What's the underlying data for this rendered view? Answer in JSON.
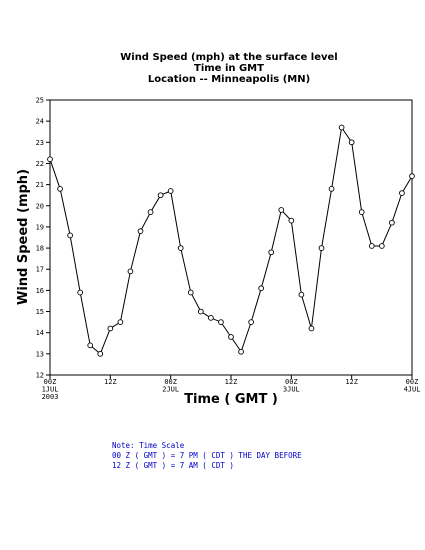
{
  "chart_data": {
    "type": "line",
    "title_lines": [
      "Wind Speed (mph) at the surface level",
      "Time in GMT",
      "Location -- Minneapolis (MN)"
    ],
    "xlabel": "Time ( GMT )",
    "ylabel": "Wind Speed (mph)",
    "ylim": [
      12,
      25
    ],
    "yticks": [
      12,
      13,
      14,
      15,
      16,
      17,
      18,
      19,
      20,
      21,
      22,
      23,
      24,
      25
    ],
    "x_unit": "hours from 00Z 1 JUL 2003",
    "xlim": [
      0,
      72
    ],
    "xticks": [
      {
        "x": 0,
        "lines": [
          "00Z",
          "1JUL",
          "2003"
        ]
      },
      {
        "x": 12,
        "lines": [
          "12Z"
        ]
      },
      {
        "x": 24,
        "lines": [
          "00Z",
          "2JUL"
        ]
      },
      {
        "x": 36,
        "lines": [
          "12Z"
        ]
      },
      {
        "x": 48,
        "lines": [
          "00Z",
          "3JUL"
        ]
      },
      {
        "x": 60,
        "lines": [
          "12Z"
        ]
      },
      {
        "x": 72,
        "lines": [
          "00Z",
          "4JUL"
        ]
      }
    ],
    "grid": false,
    "series": [
      {
        "x": [
          0,
          2,
          4,
          6,
          8,
          10,
          12,
          14,
          16,
          18,
          20,
          22,
          24,
          26,
          28,
          30,
          32,
          34,
          36,
          38,
          40,
          42,
          44,
          46,
          48,
          50,
          52,
          54,
          56,
          58,
          60,
          62,
          64,
          66,
          68,
          70,
          72
        ],
        "values": [
          22.2,
          20.8,
          18.6,
          15.9,
          13.4,
          13.0,
          14.2,
          14.5,
          16.9,
          18.8,
          19.7,
          20.5,
          20.7,
          18.0,
          15.9,
          15.0,
          14.7,
          14.5,
          13.8,
          13.1,
          14.5,
          16.1,
          17.8,
          19.8,
          19.3,
          15.8,
          14.2,
          18.0,
          20.8,
          23.7,
          23.0,
          19.7,
          18.1,
          18.1,
          19.2,
          20.6,
          21.4
        ]
      }
    ]
  },
  "note": {
    "lines": [
      "Note: Time Scale",
      "00 Z ( GMT ) = 7 PM ( CDT ) THE DAY BEFORE",
      "12 Z ( GMT ) = 7 AM ( CDT )"
    ]
  }
}
